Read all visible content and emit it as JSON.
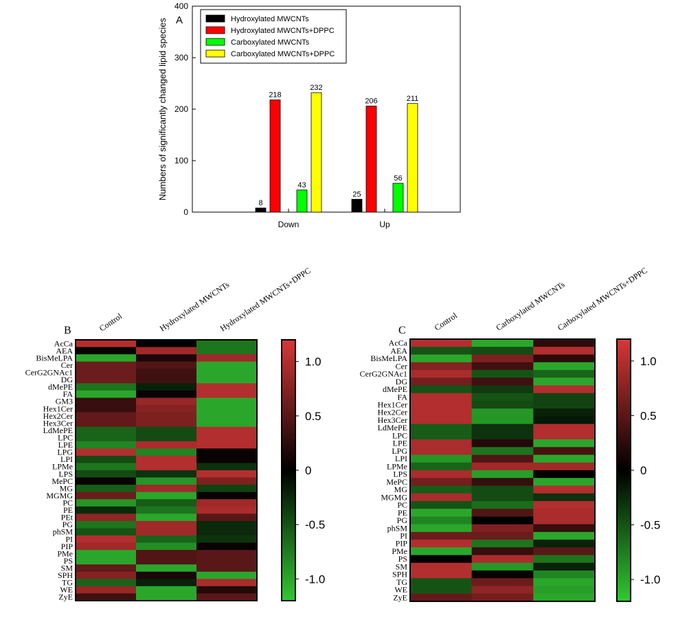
{
  "chart_data": [
    {
      "type": "bar",
      "panel": "A",
      "ylabel": "Numbers of significantly changed lipid species",
      "xlabel": "",
      "ylim": [
        0,
        400
      ],
      "yticks": [
        0,
        100,
        200,
        300,
        400
      ],
      "categories": [
        "Down",
        "Up"
      ],
      "legend_position": "top-left",
      "series": [
        {
          "name": "Hydroxylated MWCNTs",
          "color": "#000000",
          "values": [
            8,
            25
          ]
        },
        {
          "name": "Hydroxylated MWCNTs+DPPC",
          "color": "#ff0000",
          "values": [
            218,
            206
          ]
        },
        {
          "name": "Carboxylated MWCNTs",
          "color": "#00ff00",
          "values": [
            43,
            56
          ]
        },
        {
          "name": "Carboxylated MWCNTs+DPPC",
          "color": "#ffff00",
          "values": [
            232,
            211
          ]
        }
      ]
    },
    {
      "type": "heatmap",
      "panel": "B",
      "columns": [
        "Control",
        "Hydroxylated MWCNTs",
        "Hydroxylated MWCNTs+DPPC"
      ],
      "rows": [
        "AcCa",
        "AEA",
        "BisMeLPA",
        "Cer",
        "CerG2GNAc1",
        "DG",
        "dMePE",
        "FA",
        "GM3",
        "Hex1Cer",
        "Hex2Cer",
        "Hex3Cer",
        "LdMePE",
        "LPC",
        "LPE",
        "LPG",
        "LPI",
        "LPMe",
        "LPS",
        "MePC",
        "MG",
        "MGMG",
        "PC",
        "PE",
        "PEt",
        "PG",
        "phSM",
        "PI",
        "PIP",
        "PMe",
        "PS",
        "SM",
        "SPH",
        "TG",
        "WE",
        "ZyE"
      ],
      "values": [
        [
          1.0,
          0.0,
          -0.7
        ],
        [
          0.05,
          0.9,
          -0.7
        ],
        [
          -1.0,
          0.15,
          0.9
        ],
        [
          0.6,
          0.45,
          -1.0
        ],
        [
          0.6,
          0.35,
          -1.0
        ],
        [
          0.6,
          0.35,
          -1.0
        ],
        [
          -0.7,
          -0.2,
          1.0
        ],
        [
          -1.0,
          0.05,
          1.0
        ],
        [
          0.3,
          0.85,
          -1.0
        ],
        [
          0.3,
          0.75,
          -1.0
        ],
        [
          0.55,
          0.7,
          -1.0
        ],
        [
          0.55,
          0.7,
          -1.0
        ],
        [
          -0.6,
          -0.45,
          1.0
        ],
        [
          -0.6,
          -0.45,
          1.0
        ],
        [
          -0.8,
          0.95,
          1.0
        ],
        [
          1.0,
          -0.8,
          0.05
        ],
        [
          -0.45,
          1.0,
          0.05
        ],
        [
          -0.7,
          1.0,
          -0.3
        ],
        [
          -0.45,
          -0.3,
          1.0
        ],
        [
          0.05,
          -0.9,
          0.7
        ],
        [
          -0.55,
          0.9,
          -0.4
        ],
        [
          0.6,
          -1.0,
          0.05
        ],
        [
          -0.9,
          -0.55,
          0.9
        ],
        [
          -0.25,
          -0.7,
          0.95
        ],
        [
          0.8,
          -1.0,
          0.5
        ],
        [
          -0.7,
          0.9,
          -0.25
        ],
        [
          -0.5,
          0.9,
          -0.25
        ],
        [
          1.0,
          -0.6,
          -0.3
        ],
        [
          0.9,
          -0.85,
          0.05
        ],
        [
          -1.0,
          0.45,
          0.5
        ],
        [
          -1.0,
          0.45,
          0.5
        ],
        [
          0.55,
          -1.0,
          0.5
        ],
        [
          0.75,
          0.15,
          -1.0
        ],
        [
          -0.6,
          -0.2,
          0.95
        ],
        [
          0.85,
          -1.0,
          0.2
        ],
        [
          0.35,
          -1.0,
          0.5
        ]
      ],
      "colorbar": {
        "ticks": [
          "1.0",
          "0.5",
          "0",
          "-0.5",
          "-1.0"
        ],
        "tick_values": [
          1.0,
          0.5,
          0.0,
          -0.5,
          -1.0
        ],
        "range": [
          -1.2,
          1.2
        ]
      }
    },
    {
      "type": "heatmap",
      "panel": "C",
      "columns": [
        "Control",
        "Carboxylated MWCNTs",
        "Carboxylated MWCNTs+DPPC"
      ],
      "rows": [
        "AcCa",
        "AEA",
        "BisMeLPA",
        "Cer",
        "CerG2GNAc1",
        "DG",
        "dMePE",
        "FA",
        "Hex1Cer",
        "Hex2Cer",
        "Hex3Cer",
        "LdMePE",
        "LPC",
        "LPE",
        "LPG",
        "LPI",
        "LPMe",
        "LPS",
        "MePC",
        "MG",
        "MGMG",
        "PC",
        "PE",
        "PG",
        "phSM",
        "PI",
        "PIP",
        "PMe",
        "PS",
        "SM",
        "SPH",
        "TG",
        "WE",
        "ZyE"
      ],
      "values": [
        [
          1.0,
          -1.0,
          0.25
        ],
        [
          -0.5,
          -0.45,
          1.0
        ],
        [
          -1.0,
          0.7,
          0.25
        ],
        [
          0.75,
          0.35,
          -1.0
        ],
        [
          0.95,
          -0.5,
          -0.6
        ],
        [
          0.65,
          0.35,
          -1.0
        ],
        [
          -0.5,
          -0.35,
          1.0
        ],
        [
          1.0,
          -0.5,
          -0.4
        ],
        [
          1.0,
          -0.45,
          -0.4
        ],
        [
          1.0,
          -0.9,
          -0.2
        ],
        [
          1.0,
          -0.9,
          -0.15
        ],
        [
          -0.55,
          -0.3,
          1.0
        ],
        [
          -0.55,
          -0.3,
          1.0
        ],
        [
          0.95,
          0.2,
          -1.0
        ],
        [
          0.95,
          -0.7,
          0.4
        ],
        [
          -0.9,
          0.45,
          -1.0
        ],
        [
          -0.6,
          0.9,
          0.9
        ],
        [
          0.95,
          -0.95,
          0.0
        ],
        [
          0.65,
          0.3,
          -1.0
        ],
        [
          -0.55,
          -0.45,
          1.0
        ],
        [
          0.95,
          -0.45,
          -0.3
        ],
        [
          -0.5,
          -0.65,
          1.0
        ],
        [
          -1.0,
          0.45,
          0.95
        ],
        [
          -0.8,
          0.0,
          0.95
        ],
        [
          -1.0,
          0.7,
          0.3
        ],
        [
          0.6,
          0.6,
          -1.0
        ],
        [
          1.0,
          -0.7,
          -0.2
        ],
        [
          -1.0,
          0.3,
          0.5
        ],
        [
          0.0,
          0.95,
          -0.7
        ],
        [
          1.0,
          -0.9,
          -0.2
        ],
        [
          1.0,
          0.05,
          -0.8
        ],
        [
          -0.5,
          0.6,
          -1.0
        ],
        [
          -0.5,
          0.8,
          -0.95
        ],
        [
          0.55,
          0.65,
          -1.0
        ]
      ],
      "colorbar": {
        "ticks": [
          "1.0",
          "0.5",
          "0",
          "-0.5",
          "-1.0"
        ],
        "tick_values": [
          1.0,
          0.5,
          0.0,
          -0.5,
          -1.0
        ],
        "range": [
          -1.2,
          1.2
        ]
      }
    }
  ]
}
